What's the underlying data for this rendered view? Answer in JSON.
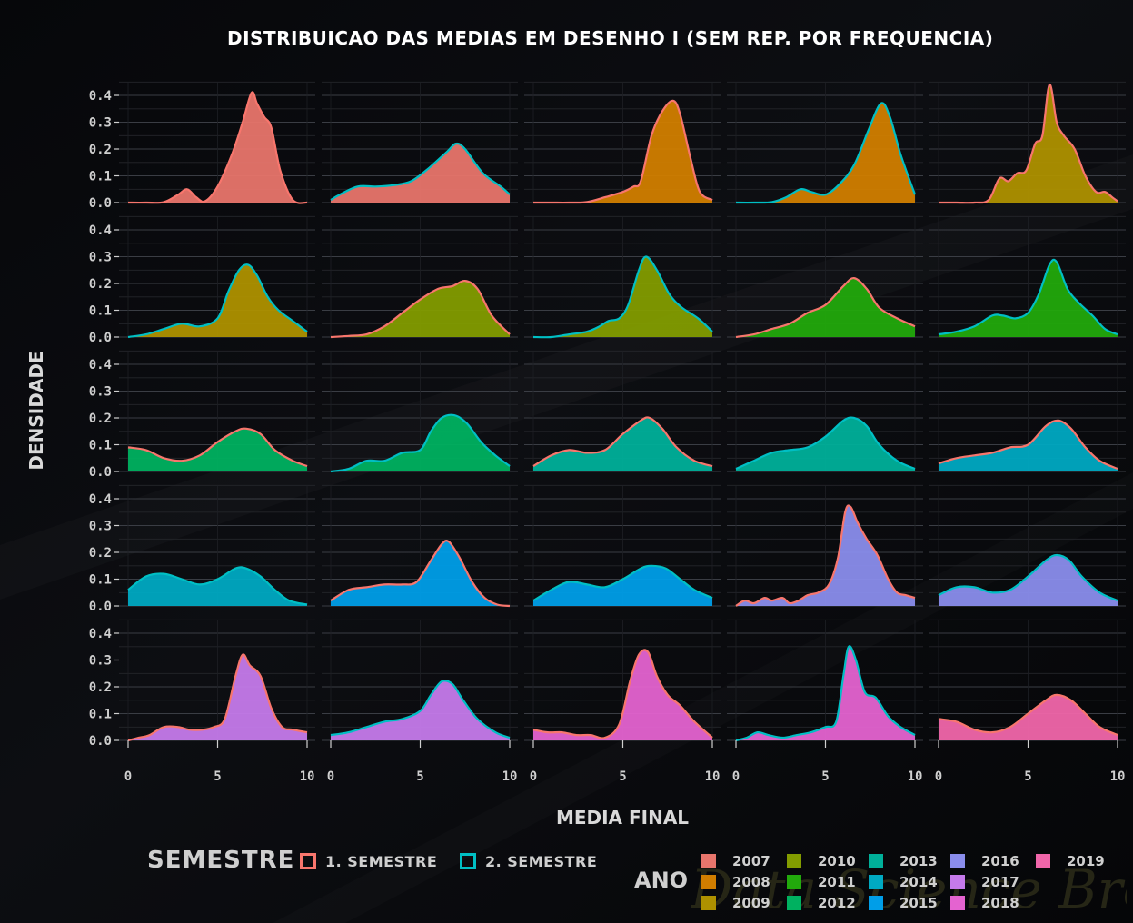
{
  "chart_data": {
    "type": "area",
    "title": "DISTRIBUICAO DAS MEDIAS EM DESENHO I (SEM REP. POR FREQUENCIA)",
    "xlabel": "MEDIA FINAL",
    "ylabel": "DENSIDADE",
    "xlim": [
      0,
      10
    ],
    "ylim": [
      0,
      0.45
    ],
    "x_ticks": [
      "0",
      "5",
      "10"
    ],
    "y_ticks": [
      "0.0",
      "0.1",
      "0.2",
      "0.3",
      "0.4"
    ],
    "facets": "Ano x Semestre (row-wise, 5 columns)",
    "series": [
      {
        "name": "2007 1. Semestre",
        "year": "2007",
        "semester": "1. SEMESTRE",
        "x": [
          0,
          1,
          2,
          2.8,
          3.3,
          3.8,
          4.3,
          5,
          5.8,
          6.4,
          6.9,
          7.2,
          7.6,
          8.0,
          8.5,
          9.2,
          10
        ],
        "y": [
          0,
          0,
          0.002,
          0.03,
          0.05,
          0.02,
          0.005,
          0.06,
          0.18,
          0.3,
          0.41,
          0.37,
          0.32,
          0.28,
          0.12,
          0.01,
          0
        ]
      },
      {
        "name": "2007 2. Semestre",
        "year": "2007",
        "semester": "2. SEMESTRE",
        "x": [
          0,
          0.5,
          1.5,
          2.5,
          3.5,
          4.5,
          5.5,
          6.5,
          7.0,
          7.5,
          8.5,
          9.5,
          10
        ],
        "y": [
          0.01,
          0.03,
          0.06,
          0.06,
          0.065,
          0.08,
          0.13,
          0.19,
          0.22,
          0.2,
          0.11,
          0.06,
          0.03
        ]
      },
      {
        "name": "2008 1. Semestre",
        "year": "2008",
        "semester": "1. SEMESTRE",
        "x": [
          0,
          1,
          2,
          3,
          4,
          5,
          5.6,
          6.0,
          6.6,
          7.2,
          7.8,
          8.2,
          8.8,
          9.3,
          10
        ],
        "y": [
          0,
          0,
          0,
          0.002,
          0.02,
          0.04,
          0.06,
          0.08,
          0.25,
          0.34,
          0.38,
          0.33,
          0.16,
          0.04,
          0.01
        ]
      },
      {
        "name": "2008 2. Semestre",
        "year": "2008",
        "semester": "2. SEMESTRE",
        "x": [
          0,
          1,
          2,
          2.8,
          3.6,
          4.2,
          5,
          5.8,
          6.6,
          7.4,
          8.1,
          8.6,
          9.2,
          10
        ],
        "y": [
          0,
          0,
          0.002,
          0.02,
          0.05,
          0.04,
          0.03,
          0.07,
          0.14,
          0.27,
          0.37,
          0.32,
          0.18,
          0.03
        ]
      },
      {
        "name": "2009 1. Semestre",
        "year": "2009",
        "semester": "1. SEMESTRE",
        "x": [
          0,
          1,
          2,
          2.8,
          3.4,
          3.9,
          4.4,
          4.9,
          5.4,
          5.8,
          6.2,
          6.6,
          7.0,
          7.6,
          8.2,
          8.8,
          9.3,
          9.7,
          10
        ],
        "y": [
          0,
          0,
          0,
          0.01,
          0.09,
          0.08,
          0.11,
          0.12,
          0.22,
          0.25,
          0.44,
          0.3,
          0.25,
          0.2,
          0.1,
          0.04,
          0.04,
          0.02,
          0.005
        ]
      },
      {
        "name": "2009 2. Semestre",
        "year": "2009",
        "semester": "2. SEMESTRE",
        "x": [
          0,
          1,
          2,
          3,
          4,
          5,
          5.6,
          6.2,
          6.7,
          7.2,
          7.8,
          8.4,
          9.2,
          10
        ],
        "y": [
          0,
          0.01,
          0.03,
          0.05,
          0.04,
          0.07,
          0.17,
          0.25,
          0.27,
          0.23,
          0.15,
          0.1,
          0.06,
          0.02
        ]
      },
      {
        "name": "2010 1. Semestre",
        "year": "2010",
        "semester": "1. SEMESTRE",
        "x": [
          0,
          1,
          2,
          3,
          4,
          5,
          6,
          6.8,
          7.5,
          8.2,
          9,
          10
        ],
        "y": [
          0,
          0.004,
          0.01,
          0.04,
          0.09,
          0.14,
          0.18,
          0.19,
          0.21,
          0.18,
          0.08,
          0.01
        ]
      },
      {
        "name": "2010 2. Semestre",
        "year": "2010",
        "semester": "2. SEMESTRE",
        "x": [
          0,
          1,
          2,
          3,
          3.7,
          4.2,
          4.8,
          5.3,
          5.9,
          6.3,
          6.9,
          7.6,
          8.3,
          9.2,
          10
        ],
        "y": [
          0,
          0,
          0.01,
          0.02,
          0.04,
          0.06,
          0.07,
          0.12,
          0.25,
          0.3,
          0.25,
          0.16,
          0.11,
          0.07,
          0.02
        ]
      },
      {
        "name": "2011 1. Semestre",
        "year": "2011",
        "semester": "1. SEMESTRE",
        "x": [
          0,
          1,
          2,
          3,
          4,
          5,
          6,
          6.6,
          7.3,
          8,
          9,
          10
        ],
        "y": [
          0,
          0.01,
          0.03,
          0.05,
          0.09,
          0.12,
          0.19,
          0.22,
          0.18,
          0.11,
          0.07,
          0.04
        ]
      },
      {
        "name": "2011 2. Semestre",
        "year": "2011",
        "semester": "2. SEMESTRE",
        "x": [
          0,
          1,
          2,
          3,
          3.6,
          4.3,
          5,
          5.6,
          6.2,
          6.6,
          7.2,
          7.8,
          8.6,
          9.3,
          10
        ],
        "y": [
          0.01,
          0.02,
          0.04,
          0.08,
          0.08,
          0.07,
          0.09,
          0.16,
          0.27,
          0.28,
          0.18,
          0.13,
          0.08,
          0.03,
          0.01
        ]
      },
      {
        "name": "2012 1. Semestre",
        "year": "2012",
        "semester": "1. SEMESTRE",
        "x": [
          0,
          1,
          2,
          3,
          4,
          5,
          6,
          6.6,
          7.4,
          8.2,
          9.2,
          10
        ],
        "y": [
          0.09,
          0.08,
          0.05,
          0.04,
          0.06,
          0.11,
          0.15,
          0.16,
          0.14,
          0.08,
          0.04,
          0.02
        ]
      },
      {
        "name": "2012 2. Semestre",
        "year": "2012",
        "semester": "2. SEMESTRE",
        "x": [
          0,
          1,
          2,
          3,
          4,
          5,
          5.6,
          6.2,
          6.9,
          7.6,
          8.4,
          9.2,
          10
        ],
        "y": [
          0,
          0.01,
          0.04,
          0.04,
          0.07,
          0.08,
          0.15,
          0.2,
          0.21,
          0.18,
          0.11,
          0.06,
          0.02
        ]
      },
      {
        "name": "2013 1. Semestre",
        "year": "2013",
        "semester": "1. SEMESTRE",
        "x": [
          0,
          1,
          2,
          3,
          4,
          5,
          6,
          6.5,
          7.2,
          8,
          9,
          10
        ],
        "y": [
          0.02,
          0.06,
          0.08,
          0.07,
          0.08,
          0.14,
          0.19,
          0.2,
          0.16,
          0.09,
          0.04,
          0.02
        ]
      },
      {
        "name": "2013 2. Semestre",
        "year": "2013",
        "semester": "2. SEMESTRE",
        "x": [
          0,
          1,
          2,
          3,
          4,
          5,
          6,
          6.6,
          7.3,
          8,
          9,
          10
        ],
        "y": [
          0.01,
          0.04,
          0.07,
          0.08,
          0.09,
          0.13,
          0.19,
          0.2,
          0.17,
          0.1,
          0.04,
          0.01
        ]
      },
      {
        "name": "2014 1. Semestre",
        "year": "2014",
        "semester": "1. SEMESTRE",
        "x": [
          0,
          1,
          2,
          3,
          4,
          5,
          6,
          6.7,
          7.4,
          8.2,
          9,
          10
        ],
        "y": [
          0.03,
          0.05,
          0.06,
          0.07,
          0.09,
          0.1,
          0.17,
          0.19,
          0.16,
          0.09,
          0.04,
          0.01
        ]
      },
      {
        "name": "2014 2. Semestre",
        "year": "2014",
        "semester": "2. SEMESTRE",
        "x": [
          0,
          1,
          2,
          3,
          4,
          5,
          6,
          6.6,
          7.4,
          8.2,
          9,
          10
        ],
        "y": [
          0.06,
          0.11,
          0.12,
          0.1,
          0.08,
          0.1,
          0.14,
          0.14,
          0.11,
          0.06,
          0.02,
          0.005
        ]
      },
      {
        "name": "2015 1. Semestre",
        "year": "2015",
        "semester": "1. SEMESTRE",
        "x": [
          0,
          1,
          2,
          3,
          4,
          4.8,
          5.6,
          6.2,
          6.6,
          7.2,
          7.9,
          8.6,
          9.3,
          10
        ],
        "y": [
          0.02,
          0.06,
          0.07,
          0.08,
          0.08,
          0.09,
          0.17,
          0.23,
          0.24,
          0.18,
          0.09,
          0.03,
          0.005,
          0
        ]
      },
      {
        "name": "2015 2. Semestre",
        "year": "2015",
        "semester": "2. SEMESTRE",
        "x": [
          0,
          1,
          2,
          3,
          4,
          5,
          6,
          6.6,
          7.4,
          8.2,
          9,
          10
        ],
        "y": [
          0.02,
          0.06,
          0.09,
          0.08,
          0.07,
          0.1,
          0.14,
          0.15,
          0.14,
          0.1,
          0.06,
          0.03
        ]
      },
      {
        "name": "2016 1. Semestre",
        "year": "2016",
        "semester": "1. SEMESTRE",
        "x": [
          0,
          0.5,
          1,
          1.6,
          2,
          2.6,
          3,
          3.5,
          4,
          4.6,
          5.2,
          5.7,
          6.1,
          6.4,
          6.8,
          7.3,
          7.9,
          8.5,
          9,
          9.5,
          10
        ],
        "y": [
          0,
          0.02,
          0.01,
          0.03,
          0.02,
          0.03,
          0.01,
          0.02,
          0.04,
          0.05,
          0.08,
          0.18,
          0.35,
          0.37,
          0.31,
          0.25,
          0.19,
          0.1,
          0.05,
          0.04,
          0.03
        ]
      },
      {
        "name": "2016 2. Semestre",
        "year": "2016",
        "semester": "2. SEMESTRE",
        "x": [
          0,
          1,
          2,
          3,
          4,
          5,
          6,
          6.6,
          7.3,
          8,
          9,
          10
        ],
        "y": [
          0.04,
          0.07,
          0.07,
          0.05,
          0.06,
          0.11,
          0.17,
          0.19,
          0.17,
          0.11,
          0.05,
          0.02
        ]
      },
      {
        "name": "2017 1. Semestre",
        "year": "2017",
        "semester": "1. SEMESTRE",
        "x": [
          0,
          0.6,
          1.2,
          2,
          2.8,
          3.4,
          4.2,
          4.8,
          5.4,
          6.0,
          6.4,
          6.8,
          7.4,
          8,
          8.6,
          9.2,
          10
        ],
        "y": [
          0,
          0.01,
          0.02,
          0.05,
          0.05,
          0.04,
          0.04,
          0.05,
          0.08,
          0.24,
          0.32,
          0.28,
          0.24,
          0.12,
          0.05,
          0.04,
          0.03
        ]
      },
      {
        "name": "2017 2. Semestre",
        "year": "2017",
        "semester": "2. SEMESTRE",
        "x": [
          0,
          1,
          2,
          3,
          4,
          5,
          5.6,
          6.2,
          6.8,
          7.4,
          8.2,
          9.2,
          10
        ],
        "y": [
          0.02,
          0.03,
          0.05,
          0.07,
          0.08,
          0.11,
          0.17,
          0.22,
          0.21,
          0.15,
          0.08,
          0.03,
          0.01
        ]
      },
      {
        "name": "2018 1. Semestre",
        "year": "2018",
        "semester": "1. SEMESTRE",
        "x": [
          0,
          0.8,
          1.6,
          2.4,
          3.2,
          4,
          4.8,
          5.4,
          5.9,
          6.4,
          6.9,
          7.5,
          8.2,
          9,
          10
        ],
        "y": [
          0.04,
          0.03,
          0.03,
          0.02,
          0.02,
          0.01,
          0.06,
          0.22,
          0.32,
          0.33,
          0.24,
          0.17,
          0.13,
          0.07,
          0.01
        ]
      },
      {
        "name": "2018 2. Semestre",
        "year": "2018",
        "semester": "2. SEMESTRE",
        "x": [
          0,
          0.6,
          1.2,
          1.8,
          2.6,
          3.4,
          4.2,
          5,
          5.6,
          6.0,
          6.3,
          6.7,
          7.2,
          7.8,
          8.5,
          9.2,
          10
        ],
        "y": [
          0,
          0.01,
          0.03,
          0.02,
          0.01,
          0.02,
          0.03,
          0.05,
          0.07,
          0.24,
          0.35,
          0.3,
          0.18,
          0.16,
          0.09,
          0.05,
          0.02
        ]
      },
      {
        "name": "2019 1. Semestre",
        "year": "2019",
        "semester": "1. SEMESTRE",
        "x": [
          0,
          1,
          2,
          3,
          4,
          5,
          6,
          6.6,
          7.4,
          8.2,
          9,
          10
        ],
        "y": [
          0.08,
          0.07,
          0.04,
          0.03,
          0.05,
          0.1,
          0.15,
          0.17,
          0.15,
          0.1,
          0.05,
          0.02
        ]
      }
    ],
    "year_colors": {
      "2007": "#E8756C",
      "2008": "#D17E00",
      "2009": "#AE9100",
      "2010": "#839C00",
      "2011": "#22A90C",
      "2012": "#00B160",
      "2013": "#00B09A",
      "2014": "#00A9C2",
      "2015": "#009EE8",
      "2016": "#8A8DEC",
      "2017": "#C57AEB",
      "2018": "#E463D0",
      "2019": "#F066AA"
    },
    "semester_colors": {
      "1. SEMESTRE": "#F8766D",
      "2. SEMESTRE": "#00BFC4"
    },
    "legend": {
      "semestre_title": "SEMESTRE",
      "semestre_items": [
        "1. SEMESTRE",
        "2. SEMESTRE"
      ],
      "ano_title": "ANO",
      "ano_items": [
        "2007",
        "2008",
        "2009",
        "2010",
        "2011",
        "2012",
        "2013",
        "2014",
        "2015",
        "2016",
        "2017",
        "2018",
        "2019"
      ],
      "placement": "bottom"
    }
  },
  "watermark": "Data Science Broon"
}
